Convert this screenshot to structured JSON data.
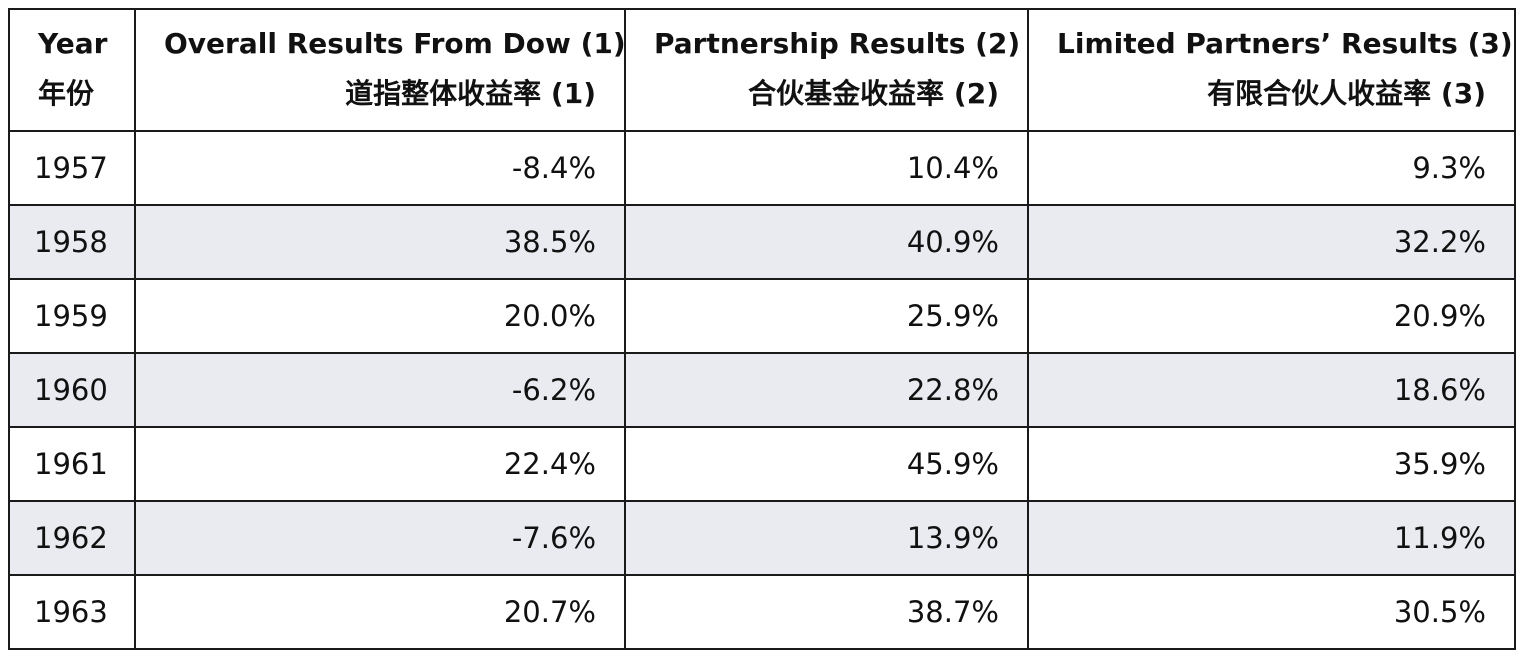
{
  "table": {
    "headers": [
      {
        "en": "Year",
        "zh": "年份"
      },
      {
        "en": "Overall Results From Dow (1)",
        "zh": "道指整体收益率 (1)"
      },
      {
        "en": "Partnership Results (2)",
        "zh": "合伙基金收益率 (2)"
      },
      {
        "en": "Limited Partners’ Results (3)",
        "zh": "有限合伙人收益率 (3)"
      }
    ],
    "rows": [
      {
        "year": "1957",
        "dow": "-8.4%",
        "partnership": "10.4%",
        "limited_partners": "9.3%"
      },
      {
        "year": "1958",
        "dow": "38.5%",
        "partnership": "40.9%",
        "limited_partners": "32.2%"
      },
      {
        "year": "1959",
        "dow": "20.0%",
        "partnership": "25.9%",
        "limited_partners": "20.9%"
      },
      {
        "year": "1960",
        "dow": "-6.2%",
        "partnership": "22.8%",
        "limited_partners": "18.6%"
      },
      {
        "year": "1961",
        "dow": "22.4%",
        "partnership": "45.9%",
        "limited_partners": "35.9%"
      },
      {
        "year": "1962",
        "dow": "-7.6%",
        "partnership": "13.9%",
        "limited_partners": "11.9%"
      },
      {
        "year": "1963",
        "dow": "20.7%",
        "partnership": "38.7%",
        "limited_partners": "30.5%"
      }
    ]
  },
  "colors": {
    "border": "#1a1a1a",
    "stripe": "#e9ebf0",
    "background": "#ffffff",
    "text": "#111111"
  }
}
